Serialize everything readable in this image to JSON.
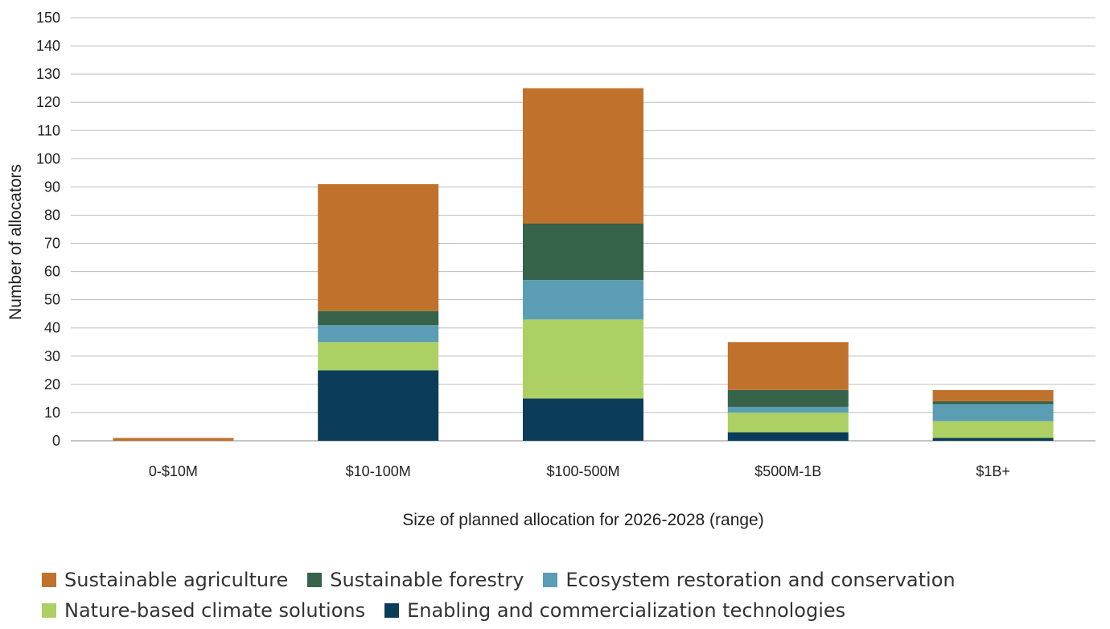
{
  "chart_data": {
    "type": "bar",
    "stacked": true,
    "title": "",
    "xlabel": "Size of planned allocation for 2026-2028 (range)",
    "ylabel": "Number of allocators",
    "ylim": [
      0,
      150
    ],
    "ytick_step": 10,
    "grid": true,
    "legend_position": "bottom",
    "categories": [
      "0-$10M",
      "$10-100M",
      "$100-500M",
      "$500M-1B",
      "$1B+"
    ],
    "series": [
      {
        "name": "Enabling and commercialization technologies",
        "color": "#0b3d5a",
        "values": [
          0,
          25,
          15,
          3,
          1
        ]
      },
      {
        "name": "Nature-based climate solutions",
        "color": "#acd063",
        "values": [
          0,
          10,
          28,
          7,
          6
        ]
      },
      {
        "name": "Ecosystem restoration and conservation",
        "color": "#5b9db4",
        "values": [
          0,
          6,
          14,
          2,
          6
        ]
      },
      {
        "name": "Sustainable forestry",
        "color": "#36634a",
        "values": [
          0,
          5,
          20,
          6,
          1
        ]
      },
      {
        "name": "Sustainable agriculture",
        "color": "#c0722c",
        "values": [
          1,
          45,
          48,
          17,
          4
        ]
      }
    ],
    "legend_rows": [
      [
        "Sustainable agriculture",
        "Sustainable forestry",
        "Ecosystem restoration and conservation"
      ],
      [
        "Nature-based climate solutions",
        "Enabling and commercialization technologies"
      ]
    ]
  }
}
